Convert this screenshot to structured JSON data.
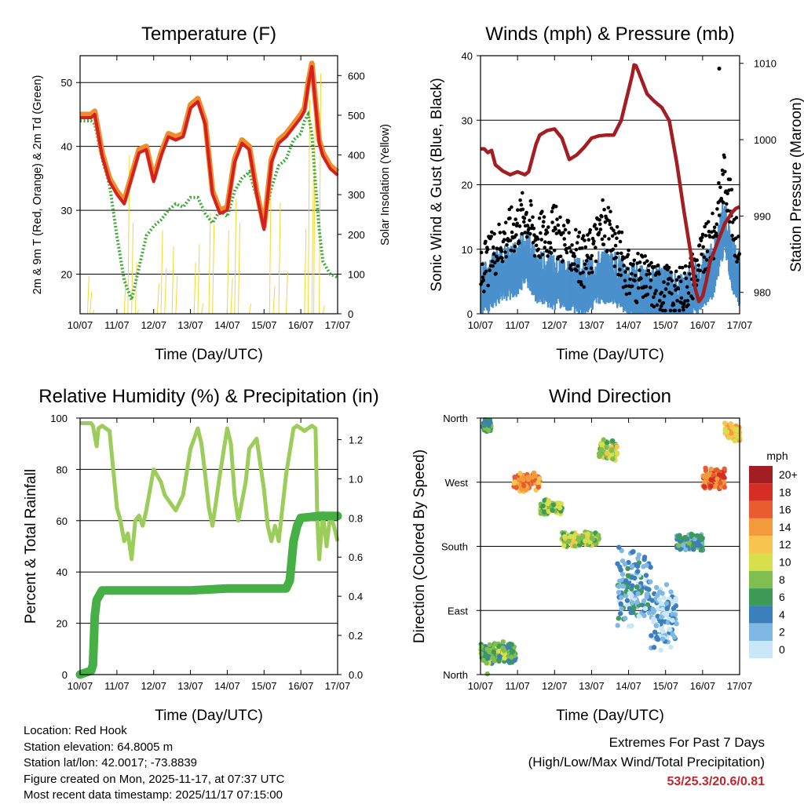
{
  "colors": {
    "temp2m": "#f08c2a",
    "temp9m": "#d42020",
    "dewpoint": "#3aaa35",
    "solar": "#f5d630",
    "gust": "#000000",
    "wind": "#4a90cc",
    "pressure": "#a31e23",
    "rh": "#9ccc5a",
    "precip": "#46b046",
    "extreme_text": "#c0262d"
  },
  "x_ticks": [
    "10/07",
    "11/07",
    "12/07",
    "13/07",
    "14/07",
    "15/07",
    "16/07",
    "17/07"
  ],
  "x_label": "Time (Day/UTC)",
  "chart_data": [
    {
      "type": "line",
      "title": "Temperature (F)",
      "ylabel": "2m & 9m T (Red, Orange) & 2m Td (Green)",
      "y2label": "Solar Insolation (Yellow)",
      "xlabel": "Time (Day/UTC)",
      "ylim": [
        13.8,
        54.2
      ],
      "y2lim": [
        0,
        650
      ],
      "yticks": [
        20,
        30,
        40,
        50
      ],
      "y2ticks": [
        0,
        100,
        200,
        300,
        400,
        500,
        600
      ],
      "x": [
        0,
        0.3,
        0.4,
        0.6,
        0.8,
        1.0,
        1.2,
        1.4,
        1.6,
        1.8,
        2.0,
        2.2,
        2.4,
        2.6,
        2.8,
        3.0,
        3.2,
        3.4,
        3.6,
        3.8,
        4.0,
        4.2,
        4.4,
        4.6,
        4.8,
        5.0,
        5.2,
        5.4,
        5.6,
        5.8,
        6.0,
        6.1,
        6.2,
        6.3,
        6.4,
        6.5,
        6.6,
        6.8,
        7.0
      ],
      "series": [
        {
          "name": "2m T",
          "values": [
            45,
            45,
            45.5,
            39,
            35,
            33,
            31.5,
            35.5,
            39.5,
            40,
            35,
            39,
            42,
            41.5,
            42,
            46.5,
            47.5,
            44,
            33,
            30,
            30.5,
            38,
            41,
            40,
            33,
            27.5,
            38,
            41,
            42,
            43.5,
            45,
            46,
            50,
            53,
            47,
            41,
            39,
            37,
            36
          ]
        },
        {
          "name": "9m T",
          "values": [
            44.5,
            44.5,
            45,
            38.5,
            34.5,
            32.5,
            31,
            35,
            39,
            39.5,
            34.5,
            38.5,
            41.5,
            41,
            41.5,
            46,
            47,
            43.5,
            32.5,
            29.5,
            30,
            37.5,
            40.5,
            39.5,
            32.5,
            27,
            37.5,
            40.5,
            41.5,
            43,
            44.5,
            45.5,
            49.5,
            52.5,
            46.5,
            40.5,
            38.5,
            36.5,
            35.5
          ]
        },
        {
          "name": "2m Td",
          "values": [
            44,
            44,
            43.5,
            38,
            34,
            26,
            19,
            16,
            21,
            26,
            27.5,
            28.5,
            30,
            31,
            30.5,
            32,
            32,
            29.5,
            28,
            30,
            29,
            33,
            35,
            36,
            32,
            28.5,
            33.5,
            37,
            38,
            41,
            42,
            44,
            45,
            42,
            34,
            27,
            22,
            20,
            19.5
          ]
        }
      ],
      "solar_x": [
        0.2,
        0.27,
        0.34,
        1.2,
        1.3,
        1.4,
        1.5,
        1.55,
        2.1,
        2.2,
        2.3,
        2.5,
        2.6,
        3.1,
        3.2,
        3.3,
        3.5,
        3.6,
        4.0,
        4.1,
        4.2,
        4.3,
        4.6,
        5.1,
        5.15,
        5.25,
        5.4,
        5.6,
        6.1,
        6.2,
        6.3,
        6.35,
        6.5,
        6.6
      ],
      "solar_y": [
        95,
        55,
        10,
        90,
        400,
        230,
        130,
        10,
        75,
        210,
        115,
        170,
        95,
        130,
        175,
        25,
        255,
        225,
        210,
        90,
        290,
        230,
        25,
        0,
        370,
        70,
        280,
        105,
        215,
        540,
        340,
        575,
        605,
        20
      ]
    },
    {
      "type": "line",
      "title": "Winds (mph) & Pressure (mb)",
      "ylabel": "Sonic Wind & Gust (Blue, Black)",
      "y2label": "Station Pressure (Maroon)",
      "xlabel": "Time (Day/UTC)",
      "ylim": [
        0,
        40
      ],
      "y2lim": [
        977.2,
        1011
      ],
      "yticks": [
        0,
        10,
        20,
        30,
        40
      ],
      "y2ticks": [
        980,
        990,
        1000,
        1010
      ],
      "series": [
        {
          "name": "Station Pressure",
          "x": [
            0,
            0.1,
            0.2,
            0.3,
            0.4,
            0.6,
            0.8,
            1.0,
            1.2,
            1.3,
            1.5,
            1.6,
            1.8,
            2.0,
            2.1,
            2.2,
            2.4,
            2.6,
            2.8,
            3.0,
            3.2,
            3.4,
            3.6,
            3.8,
            4.0,
            4.1,
            4.15,
            4.2,
            4.3,
            4.5,
            4.7,
            4.9,
            5.1,
            5.3,
            5.5,
            5.7,
            5.8,
            5.9,
            6.0,
            6.1,
            6.2,
            6.4,
            6.6,
            6.8,
            6.9,
            7.0
          ],
          "values": [
            998.8,
            998.8,
            998.3,
            998.6,
            996.7,
            995.9,
            995.4,
            995.8,
            995.4,
            995.8,
            999.4,
            1000.6,
            1001.2,
            1001.4,
            1000.8,
            1000.2,
            997.4,
            998.0,
            999.0,
            1000.2,
            1000.5,
            1000.6,
            1000.6,
            1002.5,
            1006.5,
            1008.5,
            1009.8,
            1009.7,
            1008.5,
            1006.0,
            1005.0,
            1004.2,
            1002.5,
            997.0,
            990.5,
            984.5,
            980.5,
            978.8,
            979.5,
            981.5,
            984.0,
            986.5,
            989.0,
            990.5,
            991.0,
            991.2
          ]
        },
        {
          "name": "Sonic Wind (mean)",
          "x": [
            0,
            0.5,
            1.0,
            1.2,
            1.5,
            2.0,
            2.3,
            2.8,
            3.0,
            3.3,
            3.8,
            4.0,
            4.5,
            5.0,
            5.3,
            5.6,
            5.8,
            6.0,
            6.3,
            6.5,
            6.6,
            6.8,
            7.0
          ],
          "values": [
            3.5,
            6,
            7,
            9,
            6,
            5,
            5,
            4,
            5,
            6,
            5,
            4,
            3,
            3,
            2,
            3,
            4,
            5,
            7,
            12,
            14,
            8,
            5
          ]
        },
        {
          "name": "Gust (mean)",
          "x": [
            0,
            0.5,
            1.0,
            1.2,
            1.5,
            2.0,
            2.3,
            2.8,
            3.0,
            3.3,
            3.8,
            4.0,
            4.5,
            5.0,
            5.3,
            5.6,
            5.8,
            6.0,
            6.3,
            6.5,
            6.6,
            6.8,
            7.0
          ],
          "values": [
            6,
            11,
            14,
            16,
            12,
            13,
            11,
            8,
            10,
            14,
            9,
            6,
            5,
            4,
            3,
            5,
            7,
            9,
            12,
            19,
            22,
            15,
            9
          ]
        }
      ],
      "gust_max": 38
    },
    {
      "type": "line",
      "title": "Relative Humidity (%) & Precipitation (in)",
      "ylabel": "Percent & Total Rainfall",
      "xlabel": "Time (Day/UTC)",
      "ylim": [
        0,
        100
      ],
      "y2lim": [
        0,
        1.31
      ],
      "yticks": [
        0,
        20,
        40,
        60,
        80,
        100
      ],
      "y2ticks": [
        0.0,
        0.2,
        0.4,
        0.6,
        0.8,
        1.0,
        1.2
      ],
      "series": [
        {
          "name": "Relative Humidity",
          "x": [
            0,
            0.3,
            0.35,
            0.45,
            0.5,
            0.6,
            0.8,
            0.9,
            1.0,
            1.1,
            1.2,
            1.3,
            1.4,
            1.5,
            1.6,
            1.7,
            1.8,
            2.0,
            2.2,
            2.3,
            2.5,
            2.6,
            2.8,
            3.0,
            3.1,
            3.2,
            3.3,
            3.4,
            3.5,
            3.6,
            3.8,
            4.0,
            4.1,
            4.2,
            4.3,
            4.5,
            4.6,
            4.8,
            5.0,
            5.1,
            5.2,
            5.3,
            5.4,
            5.6,
            5.8,
            5.9,
            6.0,
            6.1,
            6.2,
            6.3,
            6.4,
            6.45,
            6.5,
            6.6,
            6.7,
            6.8,
            6.9,
            7.0
          ],
          "values": [
            98,
            98,
            97,
            89,
            96,
            97,
            95,
            80,
            65,
            60,
            52,
            55,
            45,
            60,
            62,
            58,
            64,
            80,
            75,
            70,
            66,
            64,
            70,
            88,
            92,
            96,
            90,
            78,
            65,
            58,
            78,
            96,
            90,
            70,
            60,
            75,
            88,
            92,
            72,
            58,
            52,
            58,
            52,
            78,
            96,
            97,
            96,
            95,
            96,
            97,
            96,
            60,
            45,
            63,
            50,
            62,
            58,
            52
          ]
        },
        {
          "name": "Total Precipitation",
          "x": [
            0,
            0.3,
            0.35,
            0.4,
            0.45,
            0.6,
            1.0,
            2.0,
            3.0,
            4.0,
            5.0,
            5.6,
            5.7,
            5.8,
            5.9,
            6.0,
            6.5,
            7.0
          ],
          "values": [
            0,
            0.02,
            0.05,
            0.3,
            0.38,
            0.43,
            0.43,
            0.43,
            0.43,
            0.44,
            0.44,
            0.44,
            0.48,
            0.68,
            0.76,
            0.8,
            0.81,
            0.81
          ]
        }
      ]
    },
    {
      "type": "scatter",
      "title": "Wind Direction",
      "ylabel": "Direction (Colored By Speed)",
      "xlabel": "Time (Day/UTC)",
      "ylim": [
        0,
        360
      ],
      "ycategories": [
        "North",
        "East",
        "South",
        "West",
        "North"
      ],
      "legend_title": "mph",
      "legend_labels": [
        "20+",
        "18",
        "16",
        "14",
        "12",
        "10",
        "8",
        "6",
        "4",
        "2",
        "0"
      ],
      "legend_colors": [
        "#a31e23",
        "#d62e26",
        "#e85c30",
        "#f39a3b",
        "#f6c44f",
        "#d8df4c",
        "#7fbf4f",
        "#3d9a57",
        "#3b7fbd",
        "#7fb8e3",
        "#c9e7f7"
      ],
      "clusters": [
        {
          "x0": 0.0,
          "x1": 0.95,
          "dir": 30,
          "spread": 18,
          "speed": 7
        },
        {
          "x0": 0.05,
          "x1": 0.3,
          "dir": 350,
          "spread": 12,
          "speed": 6
        },
        {
          "x0": 0.9,
          "x1": 1.6,
          "dir": 270,
          "spread": 14,
          "speed": 14
        },
        {
          "x0": 1.6,
          "x1": 2.2,
          "dir": 235,
          "spread": 12,
          "speed": 8
        },
        {
          "x0": 2.2,
          "x1": 3.2,
          "dir": 190,
          "spread": 12,
          "speed": 9
        },
        {
          "x0": 3.2,
          "x1": 3.7,
          "dir": 315,
          "spread": 16,
          "speed": 9
        },
        {
          "x0": 3.7,
          "x1": 4.6,
          "dir": 120,
          "spread": 60,
          "speed": 3
        },
        {
          "x0": 4.6,
          "x1": 5.3,
          "dir": 80,
          "spread": 50,
          "speed": 2
        },
        {
          "x0": 5.3,
          "x1": 6.0,
          "dir": 185,
          "spread": 14,
          "speed": 5
        },
        {
          "x0": 6.0,
          "x1": 6.6,
          "dir": 275,
          "spread": 16,
          "speed": 16
        },
        {
          "x0": 6.6,
          "x1": 7.0,
          "dir": 340,
          "spread": 14,
          "speed": 12
        }
      ]
    }
  ],
  "info": {
    "location": "Location: Red Hook",
    "elevation": "Station elevation: 64.8005 m",
    "latlon": "Station lat/lon: 42.0017; -73.8839",
    "created": "Figure created on Mon, 2025-11-17, at 07:37 UTC",
    "recent": "Most recent data timestamp: 2025/11/17 07:15:00"
  },
  "extremes": {
    "title": "Extremes For Past 7 Days",
    "subtitle": "(High/Low/Max Wind/Total Precipitation)",
    "values": "53/25.3/20.6/0.81"
  }
}
